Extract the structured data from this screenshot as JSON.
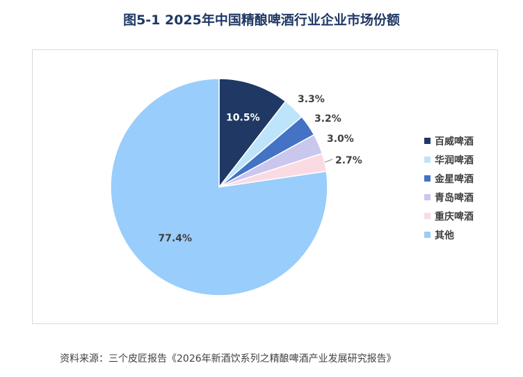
{
  "title": "图5-1 2025年中国精酿啤酒行业企业市场份额",
  "source": "资料来源：三个皮匠报告《2026年新酒饮系列之精酿啤酒产业发展研究报告》",
  "chart_data": {
    "type": "pie",
    "title": "图5-1 2025年中国精酿啤酒行业企业市场份额",
    "start_angle_deg": 0,
    "direction": "clockwise",
    "legend_position": "right",
    "slices": [
      {
        "name": "百威啤酒",
        "value": 10.5,
        "label": "10.5%",
        "color": "#1f3864"
      },
      {
        "name": "华润啤酒",
        "value": 3.3,
        "label": "3.3%",
        "color": "#bde4fb"
      },
      {
        "name": "金星啤酒",
        "value": 3.2,
        "label": "3.2%",
        "color": "#4472c4"
      },
      {
        "name": "青岛啤酒",
        "value": 3.0,
        "label": "3.0%",
        "color": "#c9c7ee"
      },
      {
        "name": "重庆啤酒",
        "value": 2.7,
        "label": "2.7%",
        "color": "#fadbe4"
      },
      {
        "name": "其他",
        "value": 77.4,
        "label": "77.4%",
        "color": "#99cdfb"
      }
    ]
  }
}
